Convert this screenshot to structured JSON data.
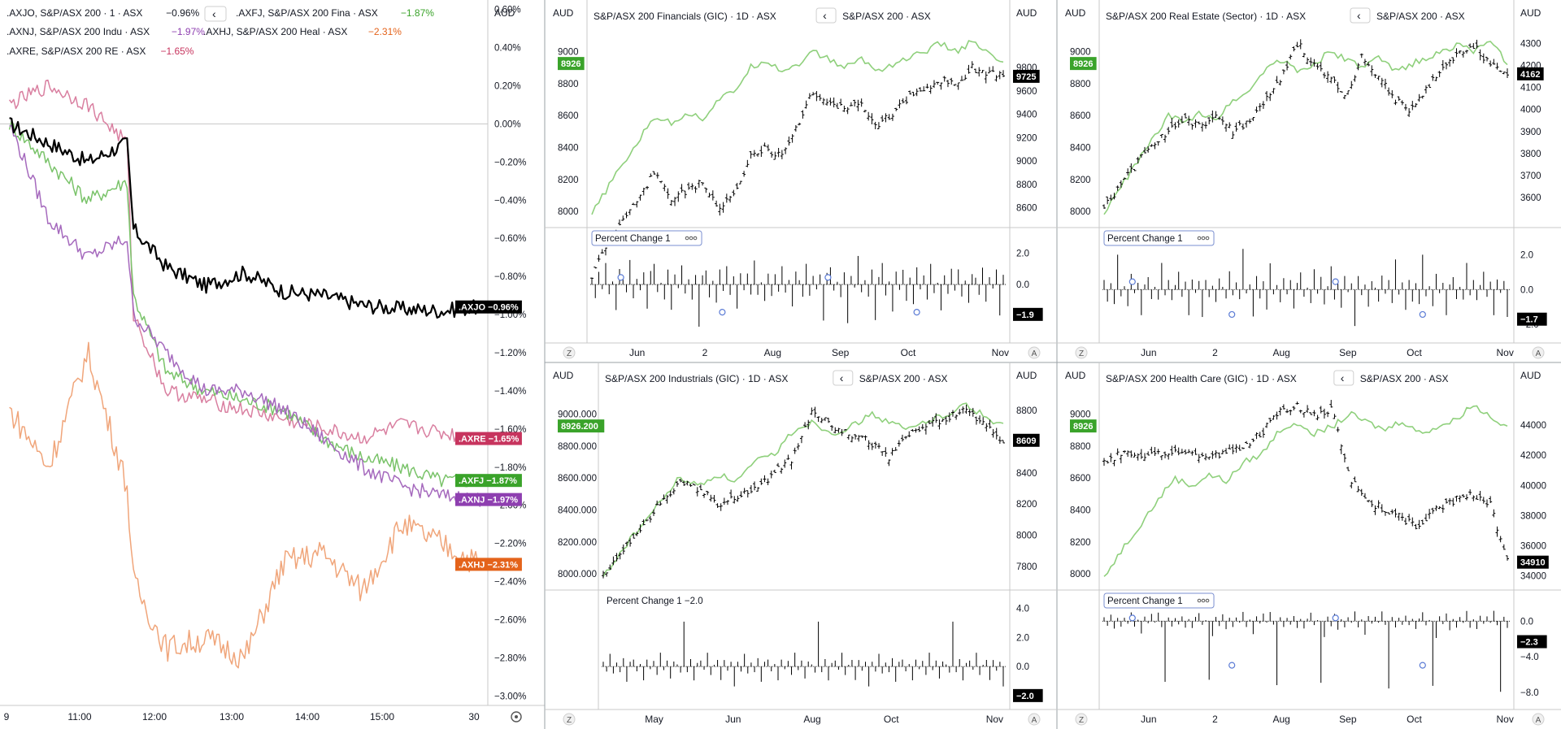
{
  "currency": "AUD",
  "colors": {
    "axjo": "#000000",
    "axfj": "#7ac36a",
    "axnj": "#a569bd",
    "axhj": "#f0a57a",
    "axre": "#d97fa0",
    "axfj_badge": "#3aa32a",
    "axnj_badge": "#8e3fb0",
    "axhj_badge": "#e4631b",
    "axre_badge": "#c7345e",
    "compare_line": "#8fd07c",
    "grid": "#e6e6e6",
    "axis_text": "#131722",
    "current_badge": "#000000",
    "compare_badge": "#3aa32a"
  },
  "left_panel": {
    "legend": [
      {
        "symbol": ".AXJO",
        "name": "S&P/ASX 200",
        "meta": "1 · ASX",
        "change": "−0.96%",
        "color_key": "axjo"
      },
      {
        "symbol": ".AXFJ",
        "name": "S&P/ASX 200 Fina",
        "meta": "ASX",
        "change": "−1.87%",
        "color_key": "axfj"
      },
      {
        "symbol": ".AXNJ",
        "name": "S&P/ASX 200 Indu",
        "meta": "ASX",
        "change": "−1.97%",
        "color_key": "axnj"
      },
      {
        "symbol": ".AXHJ",
        "name": "S&P/ASX 200 Heal",
        "meta": "ASX",
        "change": "−2.31%",
        "color_key": "axhj"
      },
      {
        "symbol": ".AXRE",
        "name": "S&P/ASX 200 RE",
        "meta": "ASX",
        "change": "−1.65%",
        "color_key": "axre"
      }
    ],
    "collapse_glyph": "‹",
    "x_ticks": [
      "9",
      "11:00",
      "12:00",
      "13:00",
      "14:00",
      "15:00",
      "30"
    ],
    "settings_icon": "gear-icon"
  },
  "chart_data": [
    {
      "id": "intraday",
      "type": "line",
      "title": "",
      "xlabel": "",
      "ylabel": "",
      "x": [
        10.0,
        10.5,
        11.0,
        11.5,
        11.58,
        12.0,
        12.5,
        13.0,
        13.5,
        14.0,
        14.5,
        15.0,
        15.5,
        16.0
      ],
      "x_range_hours": [
        10.0,
        16.0
      ],
      "ylim": [
        -3.05,
        0.65
      ],
      "y_ticks": [
        "0.60%",
        "0.40%",
        "0.20%",
        "0.00%",
        "−0.20%",
        "−0.40%",
        "−0.60%",
        "−0.80%",
        "−1.00%",
        "−1.20%",
        "−1.40%",
        "−1.60%",
        "−1.80%",
        "−2.00%",
        "−2.20%",
        "−2.40%",
        "−2.60%",
        "−2.80%",
        "−3.00%"
      ],
      "y_tick_values": [
        0.6,
        0.4,
        0.2,
        0.0,
        -0.2,
        -0.4,
        -0.6,
        -0.8,
        -1.0,
        -1.2,
        -1.4,
        -1.6,
        -1.8,
        -2.0,
        -2.2,
        -2.4,
        -2.6,
        -2.8,
        -3.0
      ],
      "zero_line": 0.0,
      "series": [
        {
          "name": ".AXJO",
          "color_key": "axjo",
          "values": [
            0.0,
            -0.1,
            -0.2,
            -0.1,
            -0.55,
            -0.75,
            -0.85,
            -0.78,
            -0.88,
            -0.9,
            -0.95,
            -0.97,
            -0.98,
            -0.96
          ],
          "end_label": ".AXJO −0.96%"
        },
        {
          "name": ".AXFJ",
          "color_key": "axfj",
          "values": [
            0.0,
            -0.2,
            -0.4,
            -0.3,
            -0.9,
            -1.3,
            -1.4,
            -1.45,
            -1.5,
            -1.65,
            -1.75,
            -1.8,
            -1.87,
            -1.87
          ],
          "end_label": ".AXFJ −1.87%"
        },
        {
          "name": ".AXNJ",
          "color_key": "axnj",
          "values": [
            0.0,
            -0.5,
            -0.7,
            -0.6,
            -1.0,
            -1.2,
            -1.4,
            -1.4,
            -1.5,
            -1.65,
            -1.8,
            -1.9,
            -1.95,
            -1.97
          ],
          "end_label": ".AXNJ −1.97%"
        },
        {
          "name": ".AXHJ",
          "color_key": "axhj",
          "values": [
            -1.5,
            -1.8,
            -1.2,
            -1.9,
            -2.4,
            -2.75,
            -2.7,
            -2.8,
            -2.3,
            -2.25,
            -2.45,
            -2.1,
            -2.2,
            -2.31
          ],
          "end_label": ".AXHJ −2.31%"
        },
        {
          "name": ".AXRE",
          "color_key": "axre",
          "values": [
            0.1,
            0.2,
            0.1,
            -0.1,
            -1.0,
            -1.4,
            -1.45,
            -1.5,
            -1.55,
            -1.6,
            -1.65,
            -1.58,
            -1.62,
            -1.65
          ],
          "end_label": ".AXRE −1.65%"
        }
      ]
    },
    {
      "id": "financials",
      "type": "bar",
      "title": "S&P/ASX 200 Financials (GIC) · 1D · ASX",
      "compare_label": "S&P/ASX 200 · ASX",
      "x_ticks": [
        "Jun",
        "2",
        "Aug",
        "Sep",
        "Oct",
        "Nov"
      ],
      "left_ticks": [
        "9000",
        "8800",
        "8600",
        "8400",
        "8200",
        "8000"
      ],
      "right_ticks": [
        "9800",
        "9600",
        "9400",
        "9200",
        "9000",
        "8800",
        "8600"
      ],
      "left_range": [
        7950,
        9120
      ],
      "right_range": [
        8500,
        10100
      ],
      "compare_badge": "8926",
      "current_badge": "9725",
      "ohlc_closes": [
        8000,
        8300,
        8500,
        8700,
        8900,
        8650,
        8750,
        8820,
        8600,
        8700,
        9050,
        9100,
        9050,
        9300,
        9600,
        9500,
        9450,
        9500,
        9300,
        9400,
        9550,
        9600,
        9700,
        9650,
        9800,
        9750,
        9725
      ],
      "compare_closes": [
        7980,
        8150,
        8300,
        8450,
        8600,
        8550,
        8620,
        8580,
        8700,
        8750,
        8900,
        8950,
        8880,
        8920,
        9000,
        8950,
        8900,
        8960,
        8880,
        8920,
        8960,
        9000,
        9050,
        9000,
        9060,
        8990,
        8926
      ],
      "indicator": {
        "label": "Percent Change 1",
        "badge": "−1.9",
        "ticks": [
          "2.0",
          "0.0"
        ],
        "ylim": [
          -3.2,
          3.0
        ],
        "values": [
          0.8,
          -1.0,
          1.1,
          -0.5,
          1.5,
          -0.8,
          0.3,
          -1.7,
          1.2,
          0.5,
          -0.9,
          1.8,
          -1.2,
          0.6,
          -0.4,
          1.0,
          -2.4,
          0.9,
          1.6,
          -0.7,
          0.2,
          -1.1,
          1.3,
          -2.7,
          0.7,
          -0.3,
          1.9,
          -0.6,
          0.4,
          -1.4,
          1.1,
          -3.1,
          0.8,
          1.5,
          -0.9,
          0.3,
          -1.8,
          1.0,
          -0.5,
          1.7,
          -1.2,
          0.6,
          -2.1,
          1.2,
          -0.4,
          0.9,
          -1.0,
          1.6,
          -0.8,
          0.2,
          -1.9
        ]
      }
    },
    {
      "id": "realestate",
      "type": "bar",
      "title": "S&P/ASX 200 Real Estate (Sector) · 1D · ASX",
      "compare_label": "S&P/ASX 200 · ASX",
      "x_ticks": [
        "Jun",
        "2",
        "Aug",
        "Sep",
        "Oct",
        "Nov"
      ],
      "left_ticks": [
        "9000",
        "8800",
        "8600",
        "8400",
        "8200",
        "8000"
      ],
      "right_ticks": [
        "4300",
        "4200",
        "4100",
        "4000",
        "3900",
        "3800",
        "3700",
        "3600"
      ],
      "left_range": [
        7950,
        9120
      ],
      "right_range": [
        3500,
        4350
      ],
      "compare_badge": "8926",
      "current_badge": "4162",
      "ohlc_closes": [
        3550,
        3650,
        3750,
        3850,
        3900,
        3950,
        3920,
        3980,
        3900,
        3950,
        4050,
        4150,
        4300,
        4200,
        4150,
        4050,
        4250,
        4150,
        4050,
        4000,
        4100,
        4200,
        4250,
        4280,
        4200,
        4162
      ],
      "compare_closes": [
        7980,
        8150,
        8300,
        8450,
        8600,
        8550,
        8620,
        8580,
        8700,
        8750,
        8900,
        8950,
        8880,
        8920,
        9000,
        8950,
        8900,
        8960,
        8880,
        8920,
        8960,
        9000,
        9050,
        9000,
        9060,
        8926
      ],
      "indicator": {
        "label": "Percent Change 1",
        "badge": "−1.7",
        "ticks": [
          "2.0",
          "0.0",
          "−2.0"
        ],
        "ylim": [
          -2.6,
          3.0
        ],
        "values": [
          1.0,
          -0.8,
          0.5,
          -1.4,
          2.2,
          -0.5,
          0.3,
          -1.0,
          1.1,
          -0.3,
          0.7,
          -1.7,
          0.4,
          1.2,
          -0.6,
          0.2,
          -0.9,
          1.6,
          -0.4,
          0.8,
          -1.1,
          0.3,
          1.4,
          -0.7,
          0.5,
          -1.9,
          0.9,
          -0.2,
          0.6,
          -2.3,
          1.0,
          -0.5,
          0.3,
          -1.2,
          0.7,
          0.2,
          -0.8,
          1.1,
          -0.4,
          0.6,
          -1.0,
          2.7,
          -0.3,
          0.5,
          -1.7
        ]
      }
    },
    {
      "id": "industrials",
      "type": "bar",
      "title": "S&P/ASX 200 Industrials (GIC) · 1D · ASX",
      "compare_label": "S&P/ASX 200 · ASX",
      "x_ticks": [
        "May",
        "Jun",
        "Aug",
        "Oct",
        "Nov"
      ],
      "left_ticks": [
        "9000.000",
        "8800.000",
        "8600.000",
        "8400.000",
        "8200.000",
        "8000.000"
      ],
      "right_ticks": [
        "8800",
        "8600",
        "8400",
        "8200",
        "8000",
        "7800"
      ],
      "left_range": [
        7950,
        9120
      ],
      "right_range": [
        7700,
        8900
      ],
      "compare_badge": "8926.200",
      "current_badge": "8609",
      "ohlc_closes": [
        7750,
        7900,
        8050,
        8200,
        8350,
        8300,
        8200,
        8250,
        8300,
        8400,
        8500,
        8800,
        8700,
        8650,
        8600,
        8500,
        8650,
        8700,
        8750,
        8800,
        8700,
        8609
      ],
      "compare_closes": [
        7980,
        8150,
        8300,
        8450,
        8600,
        8550,
        8620,
        8580,
        8700,
        8750,
        8900,
        8950,
        8880,
        8920,
        9000,
        8950,
        8900,
        8960,
        9000,
        9060,
        8990,
        8926
      ],
      "indicator": {
        "label": "Percent Change 1 −2.0",
        "badge": "−2.0",
        "ticks": [
          "4.0",
          "2.0",
          "0.0"
        ],
        "ylim": [
          -2.4,
          4.6
        ],
        "values": [
          0.6,
          -0.4,
          1.2,
          -0.8,
          0.3,
          -0.5,
          0.9,
          -1.1,
          0.4,
          0.7,
          -0.6,
          0.2,
          -1.3,
          0.8,
          -0.2,
          0.5,
          -0.9,
          1.0,
          -0.3,
          0.6,
          -1.5,
          0.4,
          0.2,
          -0.7,
          3.4,
          -0.5,
          0.8,
          -1.0,
          0.3,
          0.6,
          -0.4,
          1.1,
          -0.8,
          0.2,
          0.5,
          -1.2,
          0.7,
          -0.3,
          0.4,
          -2.0
        ]
      }
    },
    {
      "id": "healthcare",
      "type": "bar",
      "title": "S&P/ASX 200 Health Care (GIC) · 1D · ASX",
      "compare_label": "S&P/ASX 200 · ASX",
      "x_ticks": [
        "Jun",
        "2",
        "Aug",
        "Sep",
        "Oct",
        "Nov"
      ],
      "left_ticks": [
        "9000",
        "8800",
        "8600",
        "8400",
        "8200",
        "8000"
      ],
      "right_ticks": [
        "44000",
        "42000",
        "40000",
        "38000",
        "36000",
        "34000"
      ],
      "left_range": [
        7950,
        9120
      ],
      "right_range": [
        33600,
        46000
      ],
      "compare_badge": "8926",
      "current_badge": "34910",
      "ohlc_closes": [
        41500,
        42200,
        41800,
        42000,
        42300,
        42100,
        41900,
        42200,
        42500,
        43500,
        44800,
        45300,
        44600,
        45000,
        40500,
        39000,
        38400,
        37800,
        37200,
        38500,
        39000,
        39500,
        38800,
        34910
      ],
      "compare_closes": [
        7980,
        8150,
        8300,
        8450,
        8600,
        8550,
        8620,
        8580,
        8700,
        8750,
        8900,
        8950,
        8880,
        8920,
        9000,
        8950,
        8900,
        8960,
        8880,
        8920,
        8960,
        9060,
        8990,
        8926
      ],
      "indicator": {
        "label": "Percent Change 1",
        "badge": "−2.3",
        "ticks": [
          "0.0",
          "−4.0",
          "−8.0"
        ],
        "ylim": [
          -9.0,
          2.4
        ],
        "values": [
          0.8,
          -0.6,
          1.0,
          -1.4,
          0.4,
          -0.8,
          0.6,
          -0.3,
          1.2,
          -0.9,
          0.3,
          -1.6,
          0.7,
          -0.4,
          0.9,
          -0.2,
          1.5,
          -0.7,
          -8.3,
          0.6,
          -1.1,
          0.4,
          -0.5,
          0.9,
          -0.8,
          0.3,
          -1.2,
          0.5,
          1.1,
          -0.6,
          0.2,
          -7.6,
          -2.3
        ]
      }
    }
  ],
  "panel_footer": {
    "zoom_glyph": "Z",
    "auto_glyph": "A"
  }
}
